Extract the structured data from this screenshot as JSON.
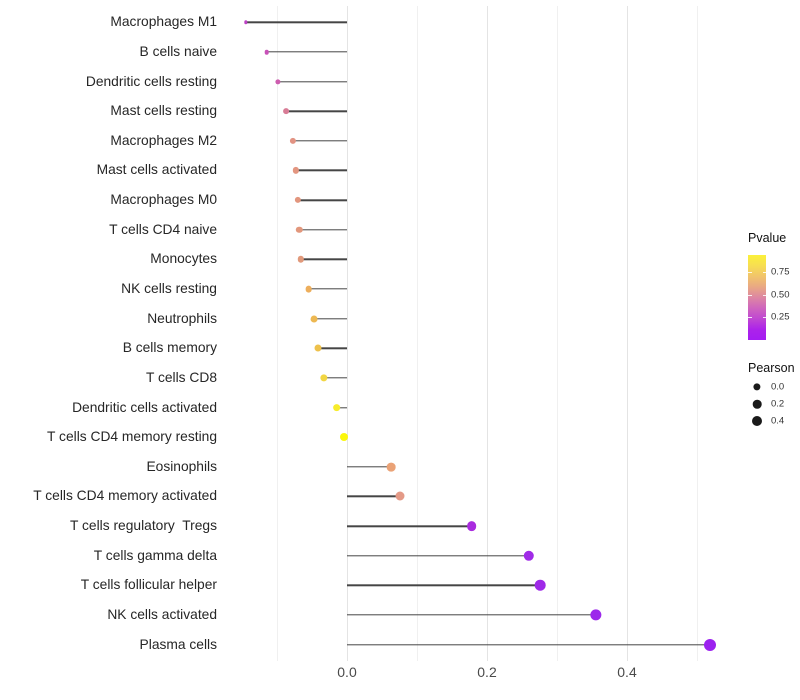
{
  "chart_data": {
    "type": "lollipop",
    "title": "",
    "xlabel": "",
    "ylabel": "",
    "x_axis": {
      "ticks": [
        0,
        0.2,
        0.4
      ],
      "tick_labels": [
        "0.0",
        "0.2",
        "0.4"
      ],
      "gridlines": [
        -0.1,
        0,
        0.1,
        0.2,
        0.3,
        0.4,
        0.5
      ],
      "range": [
        -0.175,
        0.56
      ]
    },
    "size_encoding": "Pearson",
    "color_encoding": "Pvalue",
    "points": [
      {
        "label": "Macrophages M1",
        "pearson": -0.145,
        "pvalue_approx": 0.15,
        "color": "#BC41C4",
        "radius": 1.7
      },
      {
        "label": "B cells naive",
        "pearson": -0.115,
        "pvalue_approx": 0.2,
        "color": "#C851B8",
        "radius": 2.3
      },
      {
        "label": "Dendritic cells resting",
        "pearson": -0.099,
        "pvalue_approx": 0.25,
        "color": "#CD5DAF",
        "radius": 2.6
      },
      {
        "label": "Mast cells resting",
        "pearson": -0.087,
        "pvalue_approx": 0.35,
        "color": "#D87C96",
        "radius": 2.9
      },
      {
        "label": "Macrophages M2",
        "pearson": -0.077,
        "pvalue_approx": 0.45,
        "color": "#E29383",
        "radius": 3.1
      },
      {
        "label": "Mast cells activated",
        "pearson": -0.073,
        "pvalue_approx": 0.45,
        "color": "#E39680",
        "radius": 3.15
      },
      {
        "label": "Macrophages M0",
        "pearson": -0.07,
        "pvalue_approx": 0.45,
        "color": "#E2967E",
        "radius": 3.15
      },
      {
        "label": "T cells CD4 naive",
        "pearson": -0.068,
        "pvalue_approx": 0.45,
        "color": "#E2977C",
        "radius": 3.2
      },
      {
        "label": "Monocytes",
        "pearson": -0.066,
        "pvalue_approx": 0.5,
        "color": "#E1997B",
        "radius": 3.2
      },
      {
        "label": "NK cells resting",
        "pearson": -0.055,
        "pvalue_approx": 0.6,
        "color": "#EDAE5C",
        "radius": 3.35
      },
      {
        "label": "Neutrophils",
        "pearson": -0.047,
        "pvalue_approx": 0.65,
        "color": "#EDB852",
        "radius": 3.45
      },
      {
        "label": "B cells memory",
        "pearson": -0.042,
        "pvalue_approx": 0.65,
        "color": "#EEC14B",
        "radius": 3.5
      },
      {
        "label": "T cells CD8",
        "pearson": -0.033,
        "pvalue_approx": 0.7,
        "color": "#F2D643",
        "radius": 3.65
      },
      {
        "label": "Dendritic cells activated",
        "pearson": -0.015,
        "pvalue_approx": 0.85,
        "color": "#F7EC2B",
        "radius": 3.85
      },
      {
        "label": "T cells CD4 memory resting",
        "pearson": -0.005,
        "pvalue_approx": 0.9,
        "color": "#FBF70B",
        "radius": 4.0
      },
      {
        "label": "Eosinophils",
        "pearson": 0.063,
        "pvalue_approx": 0.55,
        "color": "#EAA276",
        "radius": 4.35
      },
      {
        "label": "T cells CD4 memory activated",
        "pearson": 0.075,
        "pvalue_approx": 0.45,
        "color": "#E49A87",
        "radius": 4.5
      },
      {
        "label": "T cells regulatory  Tregs",
        "pearson": 0.178,
        "pvalue_approx": 0.05,
        "color": "#A92BDF",
        "radius": 4.85
      },
      {
        "label": "T cells gamma delta",
        "pearson": 0.26,
        "pvalue_approx": 0.05,
        "color": "#A02BE7",
        "radius": 5.2
      },
      {
        "label": "T cells follicular helper",
        "pearson": 0.276,
        "pvalue_approx": 0.05,
        "color": "#9F2AE8",
        "radius": 5.3
      },
      {
        "label": "NK cells activated",
        "pearson": 0.355,
        "pvalue_approx": 0.03,
        "color": "#9C28EB",
        "radius": 5.65
      },
      {
        "label": "Plasma cells",
        "pearson": 0.518,
        "pvalue_approx": 0.01,
        "color": "#9C22EF",
        "radius": 6.0
      }
    ]
  },
  "legend": {
    "pvalue": {
      "title": "Pvalue",
      "tick_labels": [
        "0.75",
        "0.50",
        "0.25"
      ],
      "gradient_top_to_bottom": [
        "#FBF13A",
        "#F7DE52",
        "#F1C46B",
        "#E9A884",
        "#DD86A3",
        "#CF65BE",
        "#C047D2",
        "#AC23EA",
        "#A51CF2"
      ]
    },
    "pearson": {
      "title": "Pearson",
      "items": [
        {
          "label": "0.0",
          "radius": 3.6
        },
        {
          "label": "0.2",
          "radius": 4.3
        },
        {
          "label": "0.4",
          "radius": 5.0
        }
      ]
    }
  },
  "colors": {
    "stem": "#454545",
    "grid_major": "#E4E4E4",
    "grid_minor": "#F0F0F0",
    "axis_text": "#4a4a4a",
    "label_text": "#262626",
    "background": "#FFFFFF",
    "legend_dot": "#1a1a1a"
  }
}
